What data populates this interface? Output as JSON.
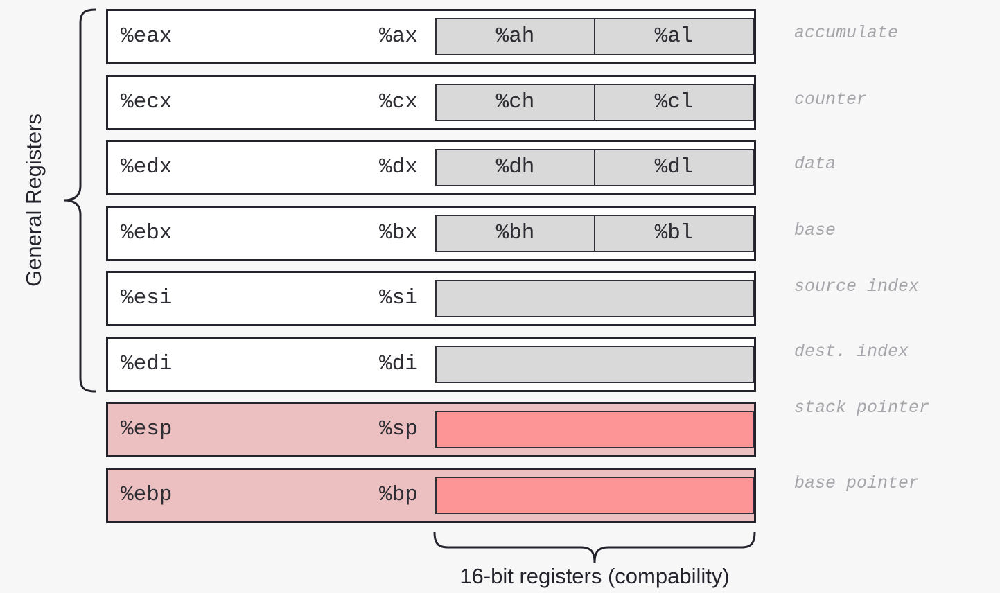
{
  "general_label": "General Registers",
  "bottom_label": "16-bit registers (compability)",
  "colors": {
    "border": "#23232b",
    "general_bg": "#ffffff",
    "special_bg": "#ecbfc0",
    "general_sub_bg": "#d9d9d9",
    "special_sub_bg": "#fd9597",
    "desc_text": "#a6a6aa"
  },
  "registers": [
    {
      "r32": "%eax",
      "r16": "%ax",
      "hi": "%ah",
      "lo": "%al",
      "desc": "accumulate"
    },
    {
      "r32": "%ecx",
      "r16": "%cx",
      "hi": "%ch",
      "lo": "%cl",
      "desc": "counter"
    },
    {
      "r32": "%edx",
      "r16": "%dx",
      "hi": "%dh",
      "lo": "%dl",
      "desc": "data"
    },
    {
      "r32": "%ebx",
      "r16": "%bx",
      "hi": "%bh",
      "lo": "%bl",
      "desc": "base"
    },
    {
      "r32": "%esi",
      "r16": "%si",
      "desc": "source index"
    },
    {
      "r32": "%edi",
      "r16": "%di",
      "desc": "dest. index"
    },
    {
      "r32": "%esp",
      "r16": "%sp",
      "desc": "stack pointer"
    },
    {
      "r32": "%ebp",
      "r16": "%bp",
      "desc": "base pointer"
    }
  ]
}
